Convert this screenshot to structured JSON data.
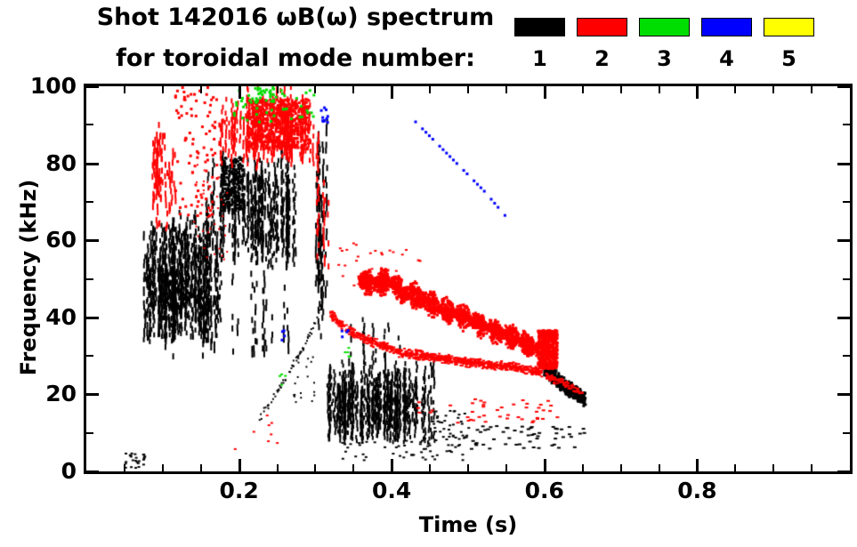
{
  "header": {
    "title_line1": "Shot 142016 ωB(ω) spectrum",
    "title_line2": "for toroidal mode number:",
    "legend_modes": [
      {
        "label": "1",
        "color": "#000000"
      },
      {
        "label": "2",
        "color": "#ff0000"
      },
      {
        "label": "3",
        "color": "#00dd00"
      },
      {
        "label": "4",
        "color": "#0000ff"
      },
      {
        "label": "5",
        "color": "#ffff00"
      }
    ]
  },
  "chart_data": {
    "type": "scatter",
    "title": "Shot 142016 ωB(ω) spectrum for toroidal mode number 1-5",
    "xlabel": "Time (s)",
    "ylabel": "Frequency (kHz)",
    "xlim": [
      0.0,
      1.0
    ],
    "ylim": [
      0,
      100
    ],
    "x_major_ticks": [
      0.2,
      0.4,
      0.6,
      0.8
    ],
    "x_major_labels": [
      "0.2",
      "0.4",
      "0.6",
      "0.8"
    ],
    "x_minor_step": 0.05,
    "y_major_ticks": [
      0,
      20,
      40,
      60,
      80,
      100
    ],
    "y_major_labels": [
      "0",
      "20",
      "40",
      "60",
      "80",
      "100"
    ],
    "y_minor_step": 10,
    "grid": false,
    "legend_position": "top-right",
    "series": [
      {
        "name": "n=1",
        "color": "#000000",
        "clusters": [
          {
            "shape": "vstreaks",
            "t": [
              0.075,
              0.175
            ],
            "f": [
              33,
              67
            ],
            "streaks": 100,
            "seg": 1.2,
            "gap": 0.32,
            "w": 2
          },
          {
            "shape": "vstreaks",
            "t": [
              0.155,
              0.275
            ],
            "f": [
              52,
              83
            ],
            "streaks": 70,
            "seg": 1.2,
            "gap": 0.38,
            "w": 2
          },
          {
            "shape": "scatter",
            "t": [
              0.175,
              0.205
            ],
            "f": [
              68,
              82
            ],
            "n": 240,
            "w": 3,
            "h": 3
          },
          {
            "shape": "vstreaks",
            "t": [
              0.1,
              0.27
            ],
            "f": [
              27,
              52
            ],
            "streaks": 25,
            "seg": 1.5,
            "gap": 0.55,
            "w": 2
          },
          {
            "shape": "vstreaks",
            "t": [
              0.3,
              0.33
            ],
            "f": [
              32,
              96
            ],
            "streaks": 8,
            "seg": 1.5,
            "gap": 0.3,
            "w": 2
          },
          {
            "shape": "vstreaks",
            "t": [
              0.315,
              0.455
            ],
            "f": [
              7,
              29
            ],
            "streaks": 110,
            "seg": 1.0,
            "gap": 0.28,
            "w": 2
          },
          {
            "shape": "vstreaks",
            "t": [
              0.33,
              0.42
            ],
            "f": [
              25,
              40
            ],
            "streaks": 10,
            "seg": 1.2,
            "gap": 0.5,
            "w": 2
          },
          {
            "shape": "scatter",
            "t": [
              0.33,
              0.5
            ],
            "f": [
              3,
              9
            ],
            "n": 60,
            "w": 3,
            "h": 2
          },
          {
            "shape": "scatter",
            "t": [
              0.45,
              0.5
            ],
            "f": [
              8,
              16
            ],
            "n": 40,
            "w": 3,
            "h": 2
          },
          {
            "shape": "scatter",
            "t": [
              0.5,
              0.65
            ],
            "f": [
              6,
              12
            ],
            "n": 55,
            "w": 4,
            "h": 2
          },
          {
            "shape": "band",
            "path": [
              [
                0.598,
                27
              ],
              [
                0.628,
                22
              ],
              [
                0.652,
                19
              ]
            ],
            "thick": 2.2,
            "density": 450,
            "w": 3,
            "h": 3,
            "wobble": false
          },
          {
            "shape": "scatter",
            "t": [
              0.045,
              0.075
            ],
            "f": [
              1,
              5
            ],
            "n": 25,
            "w": 3,
            "h": 2
          },
          {
            "shape": "band",
            "path": [
              [
                0.225,
                14
              ],
              [
                0.26,
                24
              ],
              [
                0.285,
                33
              ],
              [
                0.305,
                42
              ]
            ],
            "thick": 1.2,
            "density": 60,
            "w": 2,
            "h": 2,
            "wobble": false
          },
          {
            "shape": "scatter",
            "t": [
              0.27,
              0.3
            ],
            "f": [
              18,
              30
            ],
            "n": 20,
            "w": 2,
            "h": 2
          }
        ]
      },
      {
        "name": "n=2",
        "color": "#ff0000",
        "clusters": [
          {
            "shape": "vstreaks",
            "t": [
              0.085,
              0.115
            ],
            "f": [
              62,
              92
            ],
            "streaks": 18,
            "seg": 1.5,
            "gap": 0.45,
            "w": 2
          },
          {
            "shape": "scatter",
            "t": [
              0.115,
              0.17
            ],
            "f": [
              66,
              100
            ],
            "n": 90,
            "w": 3,
            "h": 3
          },
          {
            "shape": "scatter",
            "t": [
              0.14,
              0.185
            ],
            "f": [
              55,
              80
            ],
            "n": 40,
            "w": 2,
            "h": 2
          },
          {
            "shape": "vstreaks",
            "t": [
              0.17,
              0.3
            ],
            "f": [
              78,
              100
            ],
            "streaks": 60,
            "seg": 1.2,
            "gap": 0.3,
            "w": 2
          },
          {
            "shape": "scatter",
            "t": [
              0.21,
              0.29
            ],
            "f": [
              84,
              97
            ],
            "n": 600,
            "w": 3,
            "h": 3
          },
          {
            "shape": "vstreaks",
            "t": [
              0.298,
              0.322
            ],
            "f": [
              52,
              92
            ],
            "streaks": 5,
            "seg": 1.5,
            "gap": 0.5,
            "w": 2
          },
          {
            "shape": "scatter",
            "t": [
              0.325,
              0.355
            ],
            "f": [
              48,
              60
            ],
            "n": 12,
            "w": 3,
            "h": 2
          },
          {
            "shape": "scatter",
            "t": [
              0.36,
              0.44
            ],
            "f": [
              52,
              58
            ],
            "n": 15,
            "w": 3,
            "h": 2
          },
          {
            "shape": "band",
            "path": [
              [
                0.355,
                50
              ],
              [
                0.375,
                49
              ],
              [
                0.395,
                50
              ],
              [
                0.415,
                47
              ],
              [
                0.44,
                45
              ],
              [
                0.47,
                42
              ],
              [
                0.5,
                40
              ],
              [
                0.53,
                37
              ],
              [
                0.56,
                35
              ],
              [
                0.59,
                32
              ]
            ],
            "thick": 3.2,
            "density": 2600,
            "w": 3,
            "h": 3,
            "wobble": true
          },
          {
            "shape": "scatter",
            "t": [
              0.59,
              0.615
            ],
            "f": [
              27,
              37
            ],
            "n": 500,
            "w": 3,
            "h": 3
          },
          {
            "shape": "band",
            "path": [
              [
                0.318,
                41
              ],
              [
                0.34,
                37
              ],
              [
                0.37,
                34
              ],
              [
                0.41,
                31
              ],
              [
                0.45,
                30
              ],
              [
                0.5,
                28.5
              ],
              [
                0.55,
                27.5
              ],
              [
                0.595,
                26
              ]
            ],
            "thick": 1.4,
            "density": 900,
            "w": 3,
            "h": 2,
            "wobble": false
          },
          {
            "shape": "band",
            "path": [
              [
                0.6,
                25
              ],
              [
                0.625,
                23
              ],
              [
                0.648,
                20.5
              ]
            ],
            "thick": 1.2,
            "density": 80,
            "w": 3,
            "h": 2,
            "wobble": false
          },
          {
            "shape": "scatter",
            "t": [
              0.43,
              0.63
            ],
            "f": [
              12,
              19
            ],
            "n": 45,
            "w": 4,
            "h": 2
          },
          {
            "shape": "scatter",
            "t": [
              0.18,
              0.25
            ],
            "f": [
              6,
              20
            ],
            "n": 8,
            "w": 3,
            "h": 2
          }
        ]
      },
      {
        "name": "n=3",
        "color": "#00dd00",
        "clusters": [
          {
            "shape": "scatter",
            "t": [
              0.19,
              0.3
            ],
            "f": [
              91,
              100
            ],
            "n": 45,
            "w": 3,
            "h": 3
          },
          {
            "shape": "scatter",
            "t": [
              0.21,
              0.245
            ],
            "f": [
              96,
              100
            ],
            "n": 25,
            "w": 3,
            "h": 3
          },
          {
            "shape": "scatter",
            "t": [
              0.25,
              0.265
            ],
            "f": [
              22,
              26
            ],
            "n": 4,
            "w": 3,
            "h": 2
          },
          {
            "shape": "scatter",
            "t": [
              0.33,
              0.345
            ],
            "f": [
              29,
              33
            ],
            "n": 5,
            "w": 3,
            "h": 2
          }
        ]
      },
      {
        "name": "n=4",
        "color": "#0000ff",
        "clusters": [
          {
            "shape": "dotline",
            "path": [
              [
                0.425,
                92
              ],
              [
                0.455,
                86
              ],
              [
                0.49,
                79
              ],
              [
                0.52,
                73
              ],
              [
                0.55,
                66
              ]
            ],
            "spacing": 0.0045,
            "w": 3,
            "h": 3,
            "keep": 0.8
          },
          {
            "shape": "scatter",
            "t": [
              0.305,
              0.315
            ],
            "f": [
              90,
              97
            ],
            "n": 10,
            "w": 3,
            "h": 3
          },
          {
            "shape": "scatter",
            "t": [
              0.248,
              0.258
            ],
            "f": [
              33,
              37
            ],
            "n": 4,
            "w": 3,
            "h": 3
          },
          {
            "shape": "scatter",
            "t": [
              0.332,
              0.342
            ],
            "f": [
              35,
              39
            ],
            "n": 4,
            "w": 3,
            "h": 3
          }
        ]
      },
      {
        "name": "n=5",
        "color": "#ffff00",
        "clusters": []
      }
    ]
  }
}
